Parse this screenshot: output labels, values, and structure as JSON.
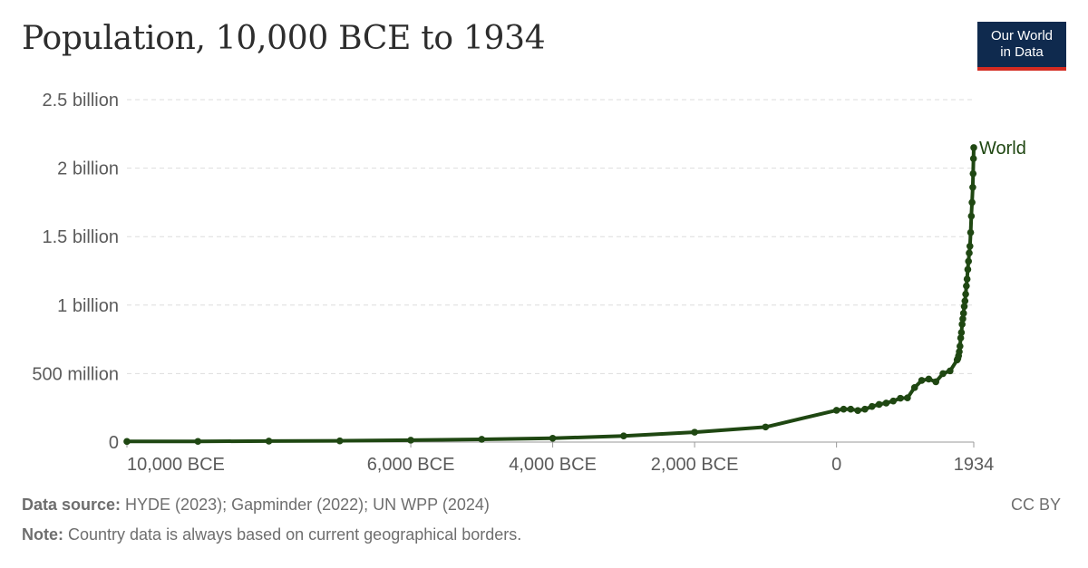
{
  "header": {
    "title": "Population, 10,000 BCE to 1934",
    "logo_line1": "Our World",
    "logo_line2": "in Data"
  },
  "footer": {
    "source_label": "Data source:",
    "source_text": " HYDE (2023); Gapminder (2022); UN WPP (2024)",
    "note_label": "Note:",
    "note_text": " Country data is always based on current geographical borders.",
    "license": "CC BY"
  },
  "colors": {
    "series": "#1f4712",
    "grid": "#dddddd",
    "axis_text": "#5b5b5b"
  },
  "chart_data": {
    "type": "line",
    "title": "Population, 10,000 BCE to 1934",
    "xlabel": "",
    "ylabel": "",
    "xlim": [
      -10000,
      1934
    ],
    "ylim": [
      0,
      2500000000
    ],
    "grid": true,
    "y_ticks": [
      {
        "value": 0,
        "label": "0"
      },
      {
        "value": 500000000,
        "label": "500 million"
      },
      {
        "value": 1000000000,
        "label": "1 billion"
      },
      {
        "value": 1500000000,
        "label": "1.5 billion"
      },
      {
        "value": 2000000000,
        "label": "2 billion"
      },
      {
        "value": 2500000000,
        "label": "2.5 billion"
      }
    ],
    "x_ticks": [
      {
        "value": -10000,
        "label": "10,000 BCE"
      },
      {
        "value": -6000,
        "label": "6,000 BCE"
      },
      {
        "value": -4000,
        "label": "4,000 BCE"
      },
      {
        "value": -2000,
        "label": "2,000 BCE"
      },
      {
        "value": 0,
        "label": "0"
      },
      {
        "value": 1934,
        "label": "1934"
      }
    ],
    "series": [
      {
        "name": "World",
        "x": [
          -10000,
          -9000,
          -8000,
          -7000,
          -6000,
          -5000,
          -4000,
          -3000,
          -2000,
          -1000,
          0,
          100,
          200,
          300,
          400,
          500,
          600,
          700,
          800,
          900,
          1000,
          1100,
          1200,
          1300,
          1400,
          1500,
          1600,
          1700,
          1710,
          1720,
          1730,
          1740,
          1750,
          1760,
          1770,
          1780,
          1790,
          1800,
          1810,
          1820,
          1830,
          1840,
          1850,
          1860,
          1870,
          1880,
          1890,
          1900,
          1910,
          1920,
          1925,
          1930,
          1934
        ],
        "values": [
          4500000,
          5000000,
          7000000,
          9000000,
          14000000,
          20000000,
          28000000,
          45000000,
          72000000,
          110000000,
          232000000,
          240000000,
          240000000,
          230000000,
          240000000,
          260000000,
          275000000,
          285000000,
          300000000,
          320000000,
          323000000,
          398000000,
          450000000,
          460000000,
          440000000,
          500000000,
          520000000,
          600000000,
          610000000,
          630000000,
          660000000,
          700000000,
          760000000,
          800000000,
          860000000,
          900000000,
          940000000,
          990000000,
          1030000000,
          1080000000,
          1140000000,
          1190000000,
          1260000000,
          1320000000,
          1380000000,
          1430000000,
          1530000000,
          1650000000,
          1750000000,
          1860000000,
          1960000000,
          2070000000,
          2150000000
        ]
      }
    ]
  }
}
